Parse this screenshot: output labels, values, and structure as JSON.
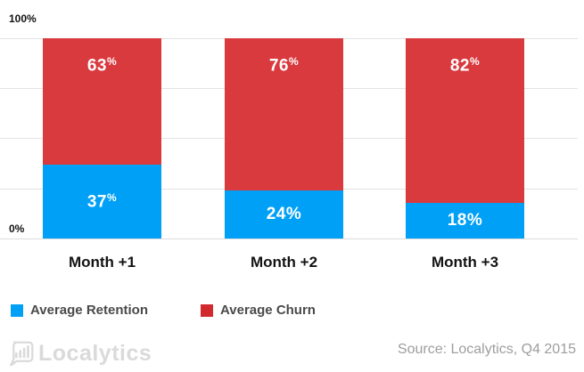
{
  "chart_data": {
    "type": "bar",
    "stacked": true,
    "categories": [
      "Month +1",
      "Month +2",
      "Month +3"
    ],
    "series": [
      {
        "name": "Average Retention",
        "color": "#00a0f6",
        "values": [
          37,
          24,
          18
        ]
      },
      {
        "name": "Average Churn",
        "color": "#d93a3e",
        "values": [
          63,
          76,
          82
        ]
      }
    ],
    "ylim": [
      0,
      100
    ],
    "y_tick_labels": [
      "0%",
      "100%"
    ],
    "grid": "horizontal lines at 0/25/50/75/100%",
    "legend_position": "bottom-left",
    "data_labels": "percent shown inside each segment"
  },
  "axis": {
    "top_label": "100%",
    "bottom_label": "0%"
  },
  "percent_sign": "%",
  "bars": [
    {
      "month": "Month +1",
      "churn": 63,
      "retention": 37,
      "churn_value": "63",
      "retention_value": "37"
    },
    {
      "month": "Month +2",
      "churn": 76,
      "retention": 24,
      "churn_value": "76",
      "retention_value": "24%"
    },
    {
      "month": "Month +3",
      "churn": 82,
      "retention": 18,
      "churn_value": "82",
      "retention_value": "18%"
    }
  ],
  "legend": {
    "retention_label": "Average Retention",
    "churn_label": "Average Churn"
  },
  "footer": {
    "logo_text": "Localytics",
    "source_text": "Source: Localytics, Q4 2015"
  },
  "colors": {
    "retention_blue": "#00a0f6",
    "churn_red": "#d93a3e",
    "gridline": "#e3e3e3",
    "legend_text": "#4a4a4a",
    "logo_gray": "#dadada",
    "source_gray": "#9e9e9e"
  }
}
